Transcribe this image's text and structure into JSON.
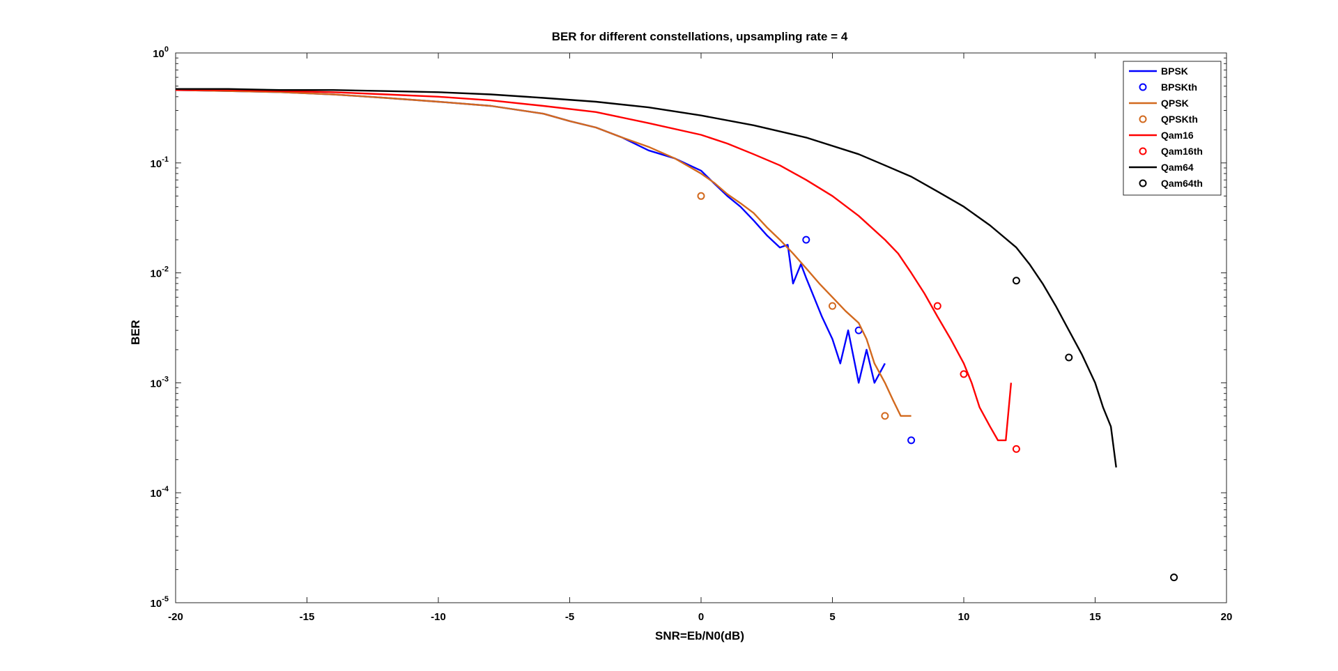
{
  "chart_data": {
    "type": "line",
    "title": "BER for different constellations, upsampling rate = 4",
    "xlabel": "SNR=Eb/N0(dB)",
    "ylabel": "BER",
    "xlim": [
      -20,
      20
    ],
    "ylim": [
      1e-05,
      1
    ],
    "yscale": "log",
    "xticks": [
      -20,
      -15,
      -10,
      -5,
      0,
      5,
      10,
      15,
      20
    ],
    "yticks": [
      {
        "value": 1,
        "base": "10",
        "exp": "0"
      },
      {
        "value": 0.1,
        "base": "10",
        "exp": "-1"
      },
      {
        "value": 0.01,
        "base": "10",
        "exp": "-2"
      },
      {
        "value": 0.001,
        "base": "10",
        "exp": "-3"
      },
      {
        "value": 0.0001,
        "base": "10",
        "exp": "-4"
      },
      {
        "value": 1e-05,
        "base": "10",
        "exp": "-5"
      }
    ],
    "grid": false,
    "legend_position": "top-right",
    "series": [
      {
        "name": "BPSK",
        "style": "line",
        "color": "#0000ff",
        "x": [
          -20,
          -18,
          -16,
          -14,
          -12,
          -10,
          -8,
          -6,
          -5,
          -4,
          -3,
          -2,
          -1,
          0,
          0.5,
          1,
          1.5,
          2,
          2.5,
          3,
          3.3,
          3.5,
          3.8,
          4,
          4.3,
          4.6,
          5,
          5.3,
          5.6,
          6,
          6.3,
          6.6,
          7
        ],
        "y": [
          0.46,
          0.45,
          0.44,
          0.42,
          0.39,
          0.36,
          0.33,
          0.28,
          0.24,
          0.21,
          0.17,
          0.13,
          0.11,
          0.085,
          0.065,
          0.05,
          0.04,
          0.03,
          0.022,
          0.017,
          0.018,
          0.008,
          0.012,
          0.009,
          0.006,
          0.004,
          0.0025,
          0.0015,
          0.003,
          0.001,
          0.002,
          0.001,
          0.0015
        ]
      },
      {
        "name": "BPSKth",
        "style": "marker",
        "color": "#0000ff",
        "x": [
          4,
          6,
          8
        ],
        "y": [
          0.02,
          0.003,
          0.0003
        ]
      },
      {
        "name": "QPSK",
        "style": "line",
        "color": "#d2691e",
        "x": [
          -20,
          -18,
          -16,
          -14,
          -12,
          -10,
          -8,
          -6,
          -5,
          -4,
          -3,
          -2,
          -1,
          0,
          0.5,
          1,
          1.5,
          2,
          2.5,
          3,
          3.5,
          4,
          4.5,
          5,
          5.5,
          6,
          6.3,
          6.6,
          7,
          7.3,
          7.6,
          8
        ],
        "y": [
          0.46,
          0.45,
          0.44,
          0.42,
          0.39,
          0.36,
          0.33,
          0.28,
          0.24,
          0.21,
          0.17,
          0.14,
          0.11,
          0.08,
          0.066,
          0.052,
          0.043,
          0.035,
          0.026,
          0.02,
          0.015,
          0.011,
          0.008,
          0.006,
          0.0045,
          0.0035,
          0.0025,
          0.0015,
          0.001,
          0.0007,
          0.0005,
          0.0005
        ]
      },
      {
        "name": "QPSKth",
        "style": "marker",
        "color": "#d2691e",
        "x": [
          0,
          5,
          7
        ],
        "y": [
          0.05,
          0.005,
          0.0005
        ]
      },
      {
        "name": "Qam16",
        "style": "line",
        "color": "#ff0000",
        "x": [
          -20,
          -18,
          -16,
          -14,
          -12,
          -10,
          -8,
          -6,
          -4,
          -2,
          0,
          1,
          2,
          3,
          4,
          5,
          6,
          7,
          7.5,
          8,
          8.5,
          9,
          9.5,
          10,
          10.3,
          10.6,
          11,
          11.3,
          11.6,
          11.8
        ],
        "y": [
          0.46,
          0.46,
          0.45,
          0.44,
          0.42,
          0.4,
          0.37,
          0.33,
          0.29,
          0.23,
          0.18,
          0.15,
          0.12,
          0.095,
          0.07,
          0.05,
          0.033,
          0.02,
          0.015,
          0.01,
          0.0065,
          0.004,
          0.0025,
          0.0015,
          0.001,
          0.0006,
          0.0004,
          0.0003,
          0.0003,
          0.001
        ]
      },
      {
        "name": "Qam16th",
        "style": "marker",
        "color": "#ff0000",
        "x": [
          9,
          10,
          12
        ],
        "y": [
          0.005,
          0.0012,
          0.00025
        ]
      },
      {
        "name": "Qam64",
        "style": "line",
        "color": "#000000",
        "x": [
          -20,
          -18,
          -16,
          -14,
          -12,
          -10,
          -8,
          -6,
          -4,
          -2,
          0,
          2,
          4,
          6,
          7,
          8,
          9,
          10,
          11,
          12,
          12.5,
          13,
          13.5,
          14,
          14.5,
          15,
          15.3,
          15.6,
          15.8
        ],
        "y": [
          0.47,
          0.47,
          0.46,
          0.46,
          0.45,
          0.44,
          0.42,
          0.39,
          0.36,
          0.32,
          0.27,
          0.22,
          0.17,
          0.12,
          0.095,
          0.075,
          0.055,
          0.04,
          0.027,
          0.017,
          0.012,
          0.008,
          0.005,
          0.003,
          0.0018,
          0.001,
          0.0006,
          0.0004,
          0.00017
        ]
      },
      {
        "name": "Qam64th",
        "style": "marker",
        "color": "#000000",
        "x": [
          12,
          14,
          18
        ],
        "y": [
          0.0085,
          0.0017,
          1.7e-05
        ]
      }
    ]
  }
}
